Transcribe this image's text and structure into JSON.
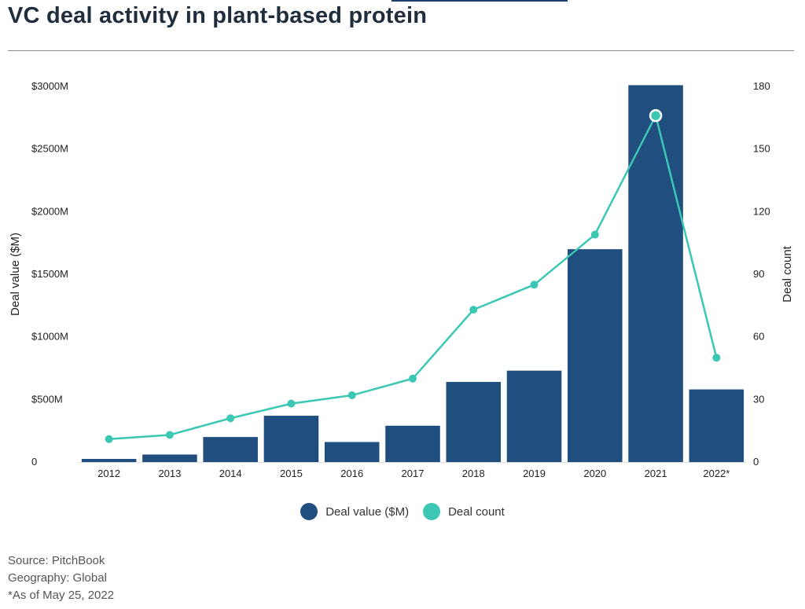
{
  "header": {
    "title": "VC deal activity in plant-based protein"
  },
  "colors": {
    "bar": "#1f4e7f",
    "line": "#3cc7b4",
    "grid": "#dddddd"
  },
  "chart_data": {
    "type": "bar",
    "title": "VC deal activity in plant-based protein",
    "categories": [
      "2012",
      "2013",
      "2014",
      "2015",
      "2016",
      "2017",
      "2018",
      "2019",
      "2020",
      "2021",
      "2022*"
    ],
    "series": [
      {
        "name": "Deal value ($M)",
        "type": "bar",
        "axis": "left",
        "values": [
          25,
          60,
          200,
          370,
          160,
          290,
          640,
          730,
          1700,
          3010,
          580
        ]
      },
      {
        "name": "Deal count",
        "type": "line",
        "axis": "right",
        "values": [
          11,
          13,
          21,
          28,
          32,
          40,
          73,
          85,
          109,
          166,
          50
        ]
      }
    ],
    "ylabel": "Deal value ($M)",
    "y2label": "Deal count",
    "ylim": [
      0,
      3000
    ],
    "y2lim": [
      0,
      180
    ],
    "y_ticks": [
      "0",
      "$500M",
      "$1000M",
      "$1500M",
      "$2000M",
      "$2500M",
      "$3000M"
    ],
    "y2_ticks": [
      "0",
      "30",
      "60",
      "90",
      "120",
      "150",
      "180"
    ],
    "highlight_point": {
      "series": "Deal count",
      "category": "2021"
    },
    "legend_position": "bottom",
    "grid": false
  },
  "legend": {
    "items": [
      "Deal value ($M)",
      "Deal count"
    ]
  },
  "source": {
    "line1": "Source: PitchBook",
    "line2": "Geography: Global",
    "line3": "*As of May 25, 2022"
  }
}
